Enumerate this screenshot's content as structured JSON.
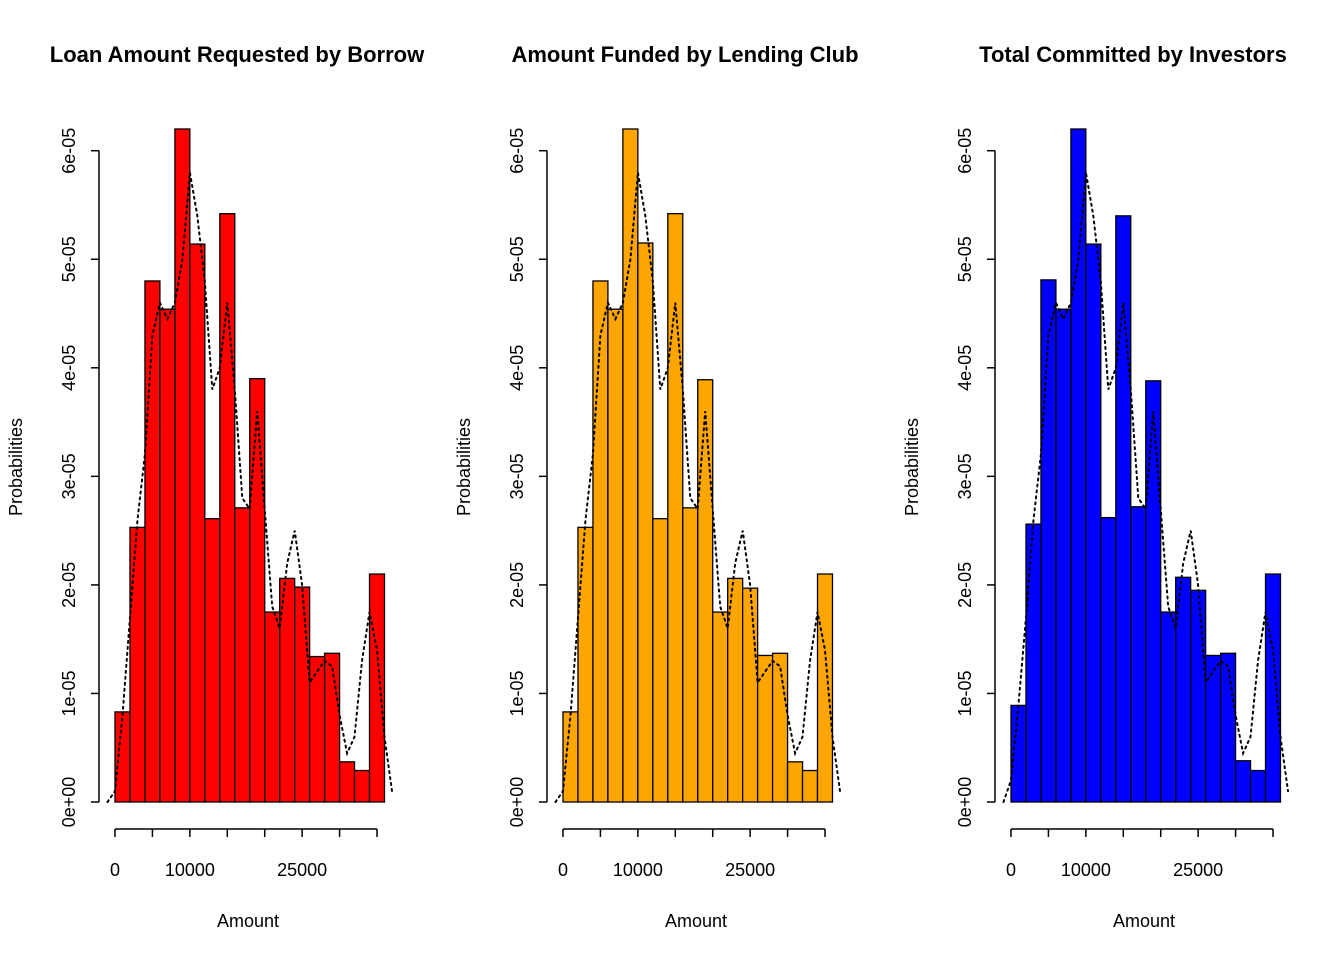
{
  "chart_data": [
    {
      "type": "bar",
      "title": "Loan Amount Requested by Borrow",
      "xlabel": "Amount",
      "ylabel": "Probabilities",
      "color": "#ff0000",
      "bin_edges": [
        0,
        2000,
        4000,
        6000,
        8000,
        10000,
        12000,
        14000,
        16000,
        18000,
        20000,
        22000,
        24000,
        26000,
        28000,
        30000,
        32000,
        34000,
        36000
      ],
      "values": [
        8.3e-06,
        2.53e-05,
        4.8e-05,
        4.54e-05,
        6.2e-05,
        5.14e-05,
        2.61e-05,
        5.42e-05,
        2.71e-05,
        3.9e-05,
        1.75e-05,
        2.06e-05,
        1.98e-05,
        1.34e-05,
        1.37e-05,
        3.7e-06,
        2.9e-06,
        2.1e-05
      ],
      "density": {
        "x": [
          -1000,
          0,
          1000,
          2000,
          3000,
          4000,
          5000,
          6000,
          7000,
          8000,
          9000,
          10000,
          11000,
          12000,
          13000,
          14000,
          15000,
          16000,
          17000,
          18000,
          19000,
          20000,
          21000,
          22000,
          23000,
          24000,
          25000,
          26000,
          27000,
          28000,
          29000,
          30000,
          31000,
          32000,
          33000,
          34000,
          35000,
          36000,
          37000
        ],
        "y": [
          0,
          1e-06,
          8e-06,
          1.7e-05,
          2.6e-05,
          3.2e-05,
          4.3e-05,
          4.6e-05,
          4.45e-05,
          4.6e-05,
          5e-05,
          5.8e-05,
          5.4e-05,
          4.8e-05,
          3.8e-05,
          4e-05,
          4.6e-05,
          3.8e-05,
          2.8e-05,
          2.7e-05,
          3.6e-05,
          2.7e-05,
          1.8e-05,
          1.6e-05,
          2.2e-05,
          2.5e-05,
          2e-05,
          1.1e-05,
          1.2e-05,
          1.3e-05,
          1.25e-05,
          8e-06,
          4.5e-06,
          6e-06,
          1.3e-05,
          1.75e-05,
          1.4e-05,
          6e-06,
          1e-06
        ]
      },
      "x_ticks": [
        0,
        10000,
        25000
      ],
      "x_tick_marks": [
        0,
        5000,
        10000,
        15000,
        20000,
        25000,
        30000,
        35000
      ],
      "y_ticks": [
        "0e+00",
        "1e-05",
        "2e-05",
        "3e-05",
        "4e-05",
        "5e-05",
        "6e-05"
      ],
      "y_tick_values": [
        0,
        1e-05,
        2e-05,
        3e-05,
        4e-05,
        5e-05,
        6e-05
      ],
      "ylim": [
        0,
        6.2e-05
      ],
      "xlim": [
        -1000,
        37000
      ]
    },
    {
      "type": "bar",
      "title": "Amount Funded by Lending Club",
      "xlabel": "Amount",
      "ylabel": "Probabilities",
      "color": "#ffa500",
      "bin_edges": [
        0,
        2000,
        4000,
        6000,
        8000,
        10000,
        12000,
        14000,
        16000,
        18000,
        20000,
        22000,
        24000,
        26000,
        28000,
        30000,
        32000,
        34000,
        36000
      ],
      "values": [
        8.3e-06,
        2.53e-05,
        4.8e-05,
        4.54e-05,
        6.2e-05,
        5.15e-05,
        2.61e-05,
        5.42e-05,
        2.71e-05,
        3.89e-05,
        1.75e-05,
        2.06e-05,
        1.97e-05,
        1.35e-05,
        1.37e-05,
        3.7e-06,
        2.9e-06,
        2.1e-05
      ],
      "density": {
        "x": [
          -1000,
          0,
          1000,
          2000,
          3000,
          4000,
          5000,
          6000,
          7000,
          8000,
          9000,
          10000,
          11000,
          12000,
          13000,
          14000,
          15000,
          16000,
          17000,
          18000,
          19000,
          20000,
          21000,
          22000,
          23000,
          24000,
          25000,
          26000,
          27000,
          28000,
          29000,
          30000,
          31000,
          32000,
          33000,
          34000,
          35000,
          36000,
          37000
        ],
        "y": [
          0,
          1e-06,
          8e-06,
          1.7e-05,
          2.6e-05,
          3.2e-05,
          4.3e-05,
          4.6e-05,
          4.45e-05,
          4.6e-05,
          5e-05,
          5.8e-05,
          5.4e-05,
          4.8e-05,
          3.8e-05,
          4e-05,
          4.6e-05,
          3.8e-05,
          2.8e-05,
          2.7e-05,
          3.6e-05,
          2.7e-05,
          1.8e-05,
          1.6e-05,
          2.2e-05,
          2.5e-05,
          2e-05,
          1.1e-05,
          1.2e-05,
          1.3e-05,
          1.25e-05,
          8e-06,
          4.5e-06,
          6e-06,
          1.3e-05,
          1.75e-05,
          1.4e-05,
          6e-06,
          1e-06
        ]
      },
      "x_ticks": [
        0,
        10000,
        25000
      ],
      "x_tick_marks": [
        0,
        5000,
        10000,
        15000,
        20000,
        25000,
        30000,
        35000
      ],
      "y_ticks": [
        "0e+00",
        "1e-05",
        "2e-05",
        "3e-05",
        "4e-05",
        "5e-05",
        "6e-05"
      ],
      "y_tick_values": [
        0,
        1e-05,
        2e-05,
        3e-05,
        4e-05,
        5e-05,
        6e-05
      ],
      "ylim": [
        0,
        6.2e-05
      ],
      "xlim": [
        -1000,
        37000
      ]
    },
    {
      "type": "bar",
      "title": "Total Committed by Investors",
      "xlabel": "Amount",
      "ylabel": "Probabilities",
      "color": "#0000ff",
      "bin_edges": [
        0,
        2000,
        4000,
        6000,
        8000,
        10000,
        12000,
        14000,
        16000,
        18000,
        20000,
        22000,
        24000,
        26000,
        28000,
        30000,
        32000,
        34000,
        36000
      ],
      "values": [
        8.9e-06,
        2.56e-05,
        4.81e-05,
        4.54e-05,
        6.2e-05,
        5.14e-05,
        2.62e-05,
        5.4e-05,
        2.72e-05,
        3.88e-05,
        1.75e-05,
        2.07e-05,
        1.95e-05,
        1.35e-05,
        1.37e-05,
        3.8e-06,
        2.9e-06,
        2.1e-05
      ],
      "density": {
        "x": [
          -1000,
          0,
          1000,
          2000,
          3000,
          4000,
          5000,
          6000,
          7000,
          8000,
          9000,
          10000,
          11000,
          12000,
          13000,
          14000,
          15000,
          16000,
          17000,
          18000,
          19000,
          20000,
          21000,
          22000,
          23000,
          24000,
          25000,
          26000,
          27000,
          28000,
          29000,
          30000,
          31000,
          32000,
          33000,
          34000,
          35000,
          36000,
          37000
        ],
        "y": [
          0,
          2e-06,
          9e-06,
          1.7e-05,
          2.6e-05,
          3.2e-05,
          4.3e-05,
          4.6e-05,
          4.45e-05,
          4.6e-05,
          5e-05,
          5.8e-05,
          5.4e-05,
          4.8e-05,
          3.8e-05,
          4e-05,
          4.6e-05,
          3.8e-05,
          2.8e-05,
          2.7e-05,
          3.6e-05,
          2.7e-05,
          1.8e-05,
          1.6e-05,
          2.2e-05,
          2.5e-05,
          2e-05,
          1.1e-05,
          1.2e-05,
          1.3e-05,
          1.25e-05,
          8e-06,
          4.5e-06,
          6e-06,
          1.3e-05,
          1.75e-05,
          1.4e-05,
          6e-06,
          1e-06
        ]
      },
      "x_ticks": [
        0,
        10000,
        25000
      ],
      "x_tick_marks": [
        0,
        5000,
        10000,
        15000,
        20000,
        25000,
        30000,
        35000
      ],
      "y_ticks": [
        "0e+00",
        "1e-05",
        "2e-05",
        "3e-05",
        "4e-05",
        "5e-05",
        "6e-05"
      ],
      "y_tick_values": [
        0,
        1e-05,
        2e-05,
        3e-05,
        4e-05,
        5e-05,
        6e-05
      ],
      "ylim": [
        0,
        6.2e-05
      ],
      "xlim": [
        -1000,
        37000
      ]
    }
  ]
}
